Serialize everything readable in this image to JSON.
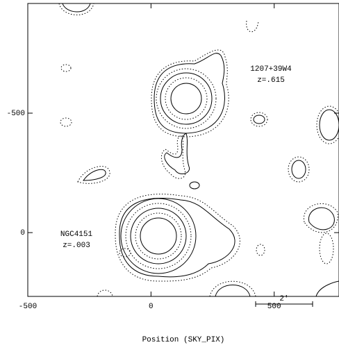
{
  "chart_data": {
    "type": "contour",
    "x_label": "Position (SKY_PIX)",
    "xlim": [
      -500,
      763
    ],
    "xticks": [
      -500,
      0,
      500
    ],
    "ylim": [
      267,
      -959
    ],
    "yticks": [
      -500,
      0
    ],
    "annotations": [
      "1207+39W4",
      "z=.615",
      "NGC4151",
      "z=.003",
      "2'"
    ]
  }
}
